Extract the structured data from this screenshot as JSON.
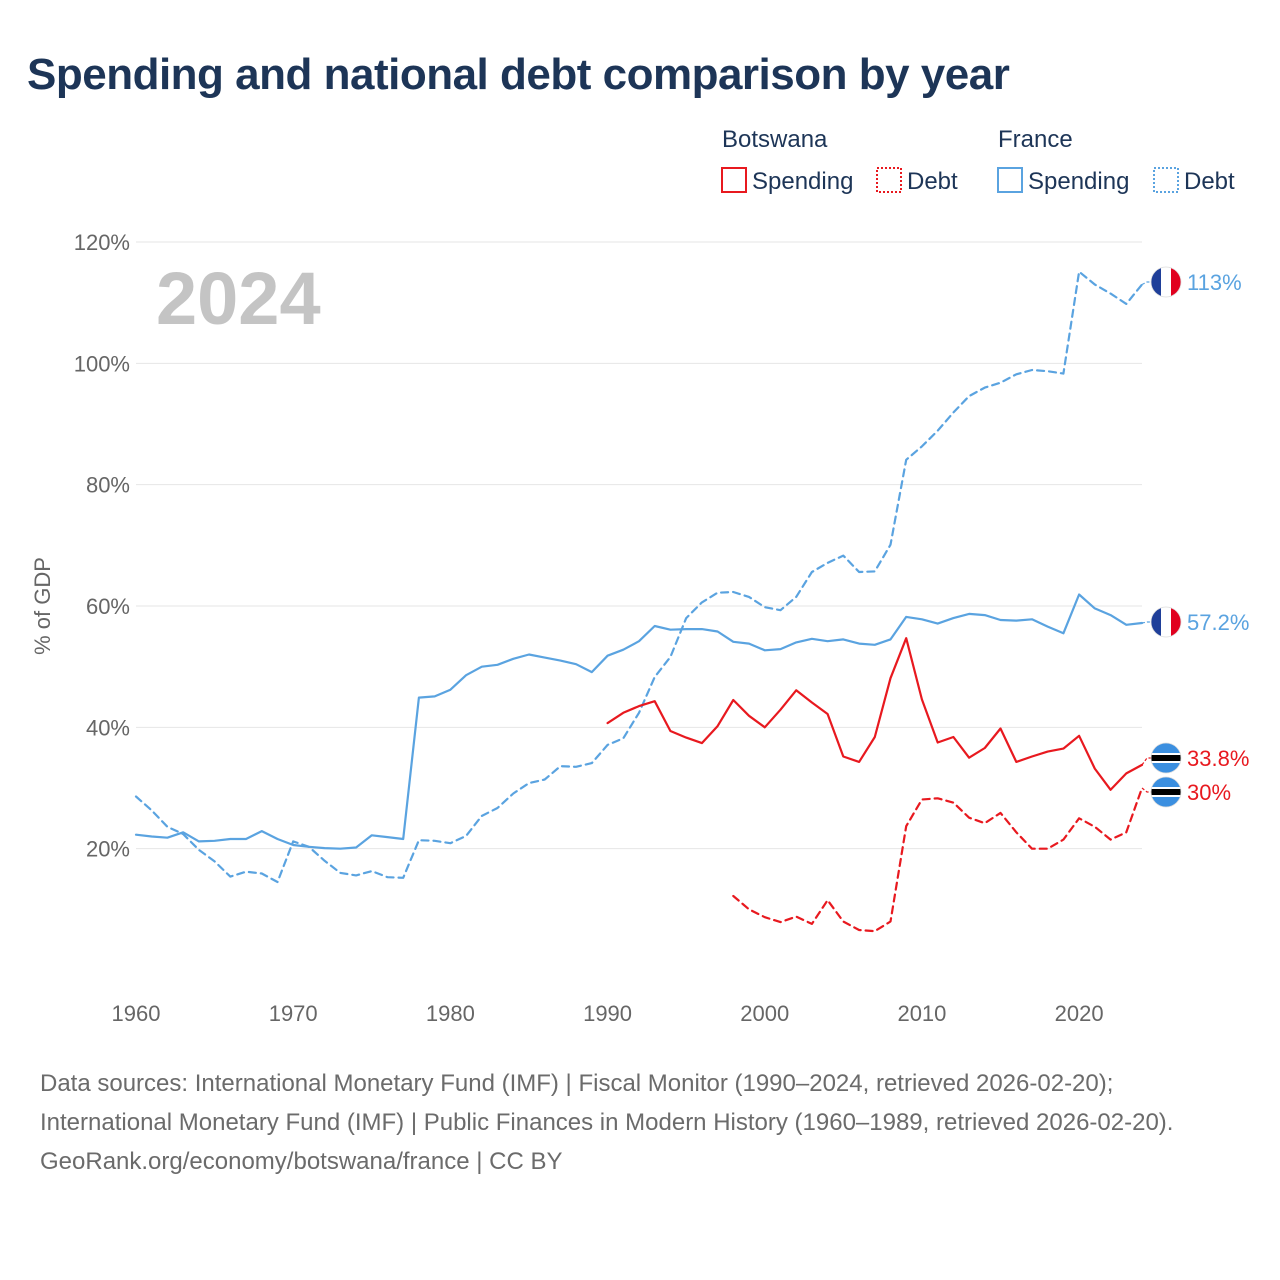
{
  "title": "Spending and national debt comparison by year",
  "year_label": "2024",
  "footer": {
    "sources": "Data sources: International Monetary Fund (IMF) | Fiscal Monitor (1990–2024, retrieved 2026-02-20); International Monetary Fund (IMF) | Public Finances in Modern History (1960–1989, retrieved 2026-02-20).",
    "credit": "GeoRank.org/economy/botswana/france | CC BY"
  },
  "legend": {
    "botswana": "Botswana",
    "france": "France",
    "spending": "Spending",
    "debt": "Debt"
  },
  "colors": {
    "botswana": "#e8191f",
    "france": "#5aa3e0",
    "title": "#1d3557"
  },
  "end_labels": {
    "fr_debt": "113%",
    "fr_spending": "57.2%",
    "bw_spending": "33.8%",
    "bw_debt": "30%"
  },
  "chart_data": {
    "type": "line",
    "title": "Spending and national debt comparison by year",
    "xlabel": "",
    "ylabel": "% of GDP",
    "xlim": [
      1960,
      2024
    ],
    "ylim": [
      0,
      120
    ],
    "x_ticks": [
      1960,
      1970,
      1980,
      1990,
      2000,
      2010,
      2020
    ],
    "y_ticks": [
      20,
      40,
      60,
      80,
      100,
      120
    ],
    "y_tick_labels": [
      "20%",
      "40%",
      "60%",
      "80%",
      "100%",
      "120%"
    ],
    "series": [
      {
        "name": "France Spending",
        "country": "France",
        "kind": "Spending",
        "style": "solid",
        "x": [
          1960,
          1961,
          1962,
          1963,
          1964,
          1965,
          1966,
          1967,
          1968,
          1969,
          1970,
          1971,
          1972,
          1973,
          1974,
          1975,
          1976,
          1977,
          1978,
          1979,
          1980,
          1981,
          1982,
          1983,
          1984,
          1985,
          1986,
          1987,
          1988,
          1989,
          1990,
          1991,
          1992,
          1993,
          1994,
          1995,
          1996,
          1997,
          1998,
          1999,
          2000,
          2001,
          2002,
          2003,
          2004,
          2005,
          2006,
          2007,
          2008,
          2009,
          2010,
          2011,
          2012,
          2013,
          2014,
          2015,
          2016,
          2017,
          2018,
          2019,
          2020,
          2021,
          2022,
          2023,
          2024
        ],
        "values": [
          22.3,
          22.0,
          21.8,
          22.7,
          21.2,
          21.3,
          21.6,
          21.6,
          22.9,
          21.6,
          20.6,
          20.3,
          20.1,
          20.0,
          20.2,
          22.2,
          21.9,
          21.6,
          44.9,
          45.1,
          46.2,
          48.6,
          50.0,
          50.3,
          51.3,
          52.0,
          51.5,
          51.0,
          50.4,
          49.1,
          51.8,
          52.8,
          54.2,
          56.7,
          56.1,
          56.2,
          56.2,
          55.8,
          54.1,
          53.8,
          52.7,
          52.9,
          54.0,
          54.6,
          54.2,
          54.5,
          53.8,
          53.6,
          54.5,
          58.2,
          57.8,
          57.1,
          58.0,
          58.7,
          58.5,
          57.7,
          57.6,
          57.8,
          56.6,
          55.5,
          61.9,
          59.6,
          58.5,
          56.9,
          57.2
        ]
      },
      {
        "name": "France Debt",
        "country": "France",
        "kind": "Debt",
        "style": "dashed",
        "x": [
          1960,
          1961,
          1962,
          1963,
          1964,
          1965,
          1966,
          1967,
          1968,
          1969,
          1970,
          1971,
          1972,
          1973,
          1974,
          1975,
          1976,
          1977,
          1978,
          1979,
          1980,
          1981,
          1982,
          1983,
          1984,
          1985,
          1986,
          1987,
          1988,
          1989,
          1990,
          1991,
          1992,
          1993,
          1994,
          1995,
          1996,
          1997,
          1998,
          1999,
          2000,
          2001,
          2002,
          2003,
          2004,
          2005,
          2006,
          2007,
          2008,
          2009,
          2010,
          2011,
          2012,
          2013,
          2014,
          2015,
          2016,
          2017,
          2018,
          2019,
          2020,
          2021,
          2022,
          2023,
          2024
        ],
        "values": [
          28.6,
          26.3,
          23.6,
          22.4,
          19.8,
          17.9,
          15.4,
          16.2,
          15.9,
          14.5,
          21.2,
          20.3,
          18.0,
          16.0,
          15.6,
          16.3,
          15.3,
          15.2,
          21.4,
          21.3,
          20.9,
          22.1,
          25.4,
          26.7,
          29.1,
          30.8,
          31.4,
          33.6,
          33.5,
          34.1,
          37.1,
          38.2,
          42.4,
          48.3,
          51.6,
          58.0,
          60.6,
          62.2,
          62.3,
          61.5,
          59.8,
          59.3,
          61.5,
          65.6,
          67.1,
          68.3,
          65.6,
          65.7,
          70.1,
          84.1,
          86.3,
          88.9,
          91.9,
          94.6,
          96.0,
          96.8,
          98.2,
          98.9,
          98.7,
          98.3,
          115.1,
          113.0,
          111.5,
          109.8,
          113.0
        ]
      },
      {
        "name": "Botswana Spending",
        "country": "Botswana",
        "kind": "Spending",
        "style": "solid",
        "x": [
          1990,
          1991,
          1992,
          1993,
          1994,
          1995,
          1996,
          1997,
          1998,
          1999,
          2000,
          2001,
          2002,
          2003,
          2004,
          2005,
          2006,
          2007,
          2008,
          2009,
          2010,
          2011,
          2012,
          2013,
          2014,
          2015,
          2016,
          2017,
          2018,
          2019,
          2020,
          2021,
          2022,
          2023,
          2024
        ],
        "values": [
          40.7,
          42.4,
          43.5,
          44.3,
          39.4,
          38.3,
          37.4,
          40.2,
          44.5,
          41.9,
          40.0,
          42.9,
          46.1,
          44.1,
          42.2,
          35.2,
          34.3,
          38.4,
          48.1,
          54.7,
          44.6,
          37.5,
          38.4,
          35.0,
          36.6,
          39.8,
          34.3,
          35.2,
          36.0,
          36.5,
          38.6,
          33.2,
          29.7,
          32.4,
          33.8
        ]
      },
      {
        "name": "Botswana Debt",
        "country": "Botswana",
        "kind": "Debt",
        "style": "dashed",
        "x": [
          1998,
          1999,
          2000,
          2001,
          2002,
          2003,
          2004,
          2005,
          2006,
          2007,
          2008,
          2009,
          2010,
          2011,
          2012,
          2013,
          2014,
          2015,
          2016,
          2017,
          2018,
          2019,
          2020,
          2021,
          2022,
          2023,
          2024
        ],
        "values": [
          12.2,
          10.0,
          8.7,
          7.9,
          8.8,
          7.6,
          11.5,
          8.0,
          6.6,
          6.4,
          8.0,
          23.7,
          28.1,
          28.3,
          27.6,
          25.1,
          24.2,
          25.9,
          22.7,
          20.0,
          20.0,
          21.5,
          25.0,
          23.6,
          21.5,
          22.7,
          30.0
        ]
      }
    ],
    "end_values": {
      "France Debt": 113,
      "France Spending": 57.2,
      "Botswana Spending": 33.8,
      "Botswana Debt": 30
    }
  }
}
